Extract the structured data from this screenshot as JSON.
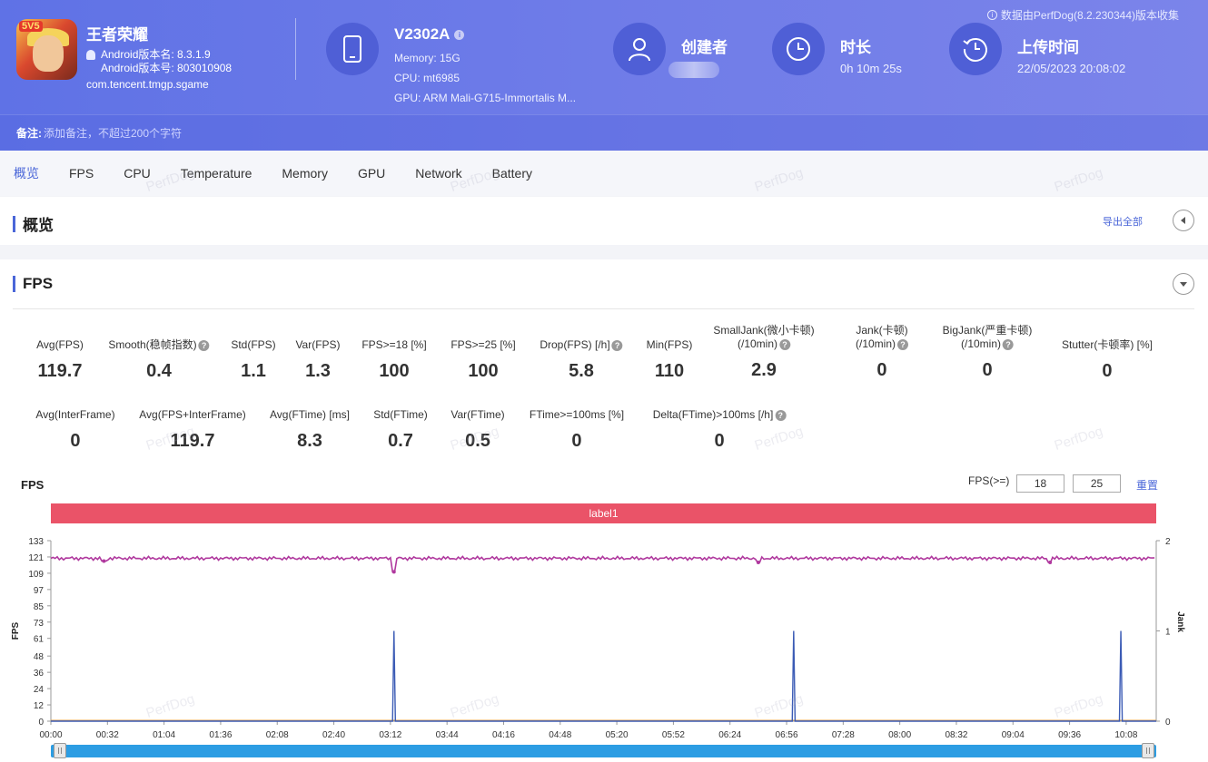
{
  "header": {
    "top_note": "数据由PerfDog(8.2.230344)版本收集",
    "app_badge": "5V5",
    "app_name": "王者荣耀",
    "android_version_name": "Android版本名: 8.3.1.9",
    "android_version_code": "Android版本号: 803010908",
    "package": "com.tencent.tmgp.sgame",
    "device": {
      "model": "V2302A",
      "memory": "Memory: 15G",
      "cpu": "CPU: mt6985",
      "gpu": "GPU: ARM Mali-G715-Immortalis M..."
    },
    "creator_title": "创建者",
    "duration_title": "时长",
    "duration_value": "0h 10m 25s",
    "upload_title": "上传时间",
    "upload_value": "22/05/2023 20:08:02",
    "note_label": "备注:",
    "note_placeholder": "添加备注，不超过200个字符"
  },
  "tabs": [
    "概览",
    "FPS",
    "CPU",
    "Temperature",
    "Memory",
    "GPU",
    "Network",
    "Battery"
  ],
  "overview": {
    "title": "概览",
    "export": "导出全部"
  },
  "fps_section": {
    "title": "FPS",
    "stats_row1": [
      {
        "name": "Avg(FPS)",
        "value": "119.7",
        "help": false
      },
      {
        "name": "Smooth(稳帧指数)",
        "value": "0.4",
        "help": true
      },
      {
        "name": "Std(FPS)",
        "value": "1.1",
        "help": false
      },
      {
        "name": "Var(FPS)",
        "value": "1.3",
        "help": false
      },
      {
        "name": "FPS>=18 [%]",
        "value": "100",
        "help": false
      },
      {
        "name": "FPS>=25 [%]",
        "value": "100",
        "help": false
      },
      {
        "name": "Drop(FPS) [/h]",
        "value": "5.8",
        "help": true
      },
      {
        "name": "Min(FPS)",
        "value": "110",
        "help": false
      },
      {
        "name": "SmallJank(微小卡顿)",
        "name2": "(/10min)",
        "value": "2.9",
        "help": true
      },
      {
        "name": "Jank(卡顿)",
        "name2": "(/10min)",
        "value": "0",
        "help": true
      },
      {
        "name": "BigJank(严重卡顿)",
        "name2": "(/10min)",
        "value": "0",
        "help": true
      },
      {
        "name": "Stutter(卡顿率) [%]",
        "value": "0",
        "help": false
      }
    ],
    "stats_row2": [
      {
        "name": "Avg(InterFrame)",
        "value": "0",
        "help": false
      },
      {
        "name": "Avg(FPS+InterFrame)",
        "value": "119.7",
        "help": false
      },
      {
        "name": "Avg(FTime) [ms]",
        "value": "8.3",
        "help": false
      },
      {
        "name": "Std(FTime)",
        "value": "0.7",
        "help": false
      },
      {
        "name": "Var(FTime)",
        "value": "0.5",
        "help": false
      },
      {
        "name": "FTime>=100ms [%]",
        "value": "0",
        "help": false
      },
      {
        "name": "Delta(FTime)>100ms [/h]",
        "value": "0",
        "help": true
      }
    ],
    "chart_label": "FPS",
    "threshold_label": "FPS(>=)",
    "threshold_1": "18",
    "threshold_2": "25",
    "reset": "重置",
    "band_label": "label1"
  },
  "watermark_text": "PerfDog",
  "colors": {
    "accent": "#4a66d8",
    "fps_line": "#b0399e",
    "jank_line": "#3b5bb5",
    "band": "#ea5368",
    "slider": "#2c9de3"
  },
  "chart_data": {
    "type": "line",
    "title": "",
    "xlabel": "",
    "ylabel": "FPS",
    "y2label": "Jank",
    "yticks": [
      0,
      12,
      24,
      36,
      48,
      61,
      73,
      85,
      97,
      109,
      121,
      133
    ],
    "ylim": [
      0,
      133
    ],
    "y2ticks": [
      0,
      1,
      2
    ],
    "y2lim": [
      0,
      2
    ],
    "xticks": [
      "00:00",
      "00:32",
      "01:04",
      "01:36",
      "02:08",
      "02:40",
      "03:12",
      "03:44",
      "04:16",
      "04:48",
      "05:20",
      "05:52",
      "06:24",
      "06:56",
      "07:28",
      "08:00",
      "08:32",
      "09:04",
      "09:36",
      "10:08"
    ],
    "x_end_seconds": 625,
    "series": [
      {
        "name": "FPS",
        "axis": "left",
        "baseline": 120,
        "dips": [
          {
            "t": 194,
            "v": 110
          },
          {
            "t": 400,
            "v": 117
          },
          {
            "t": 565,
            "v": 117
          },
          {
            "t": 30,
            "v": 118
          }
        ]
      },
      {
        "name": "Jank",
        "axis": "right",
        "values": [
          {
            "t": 194,
            "v": 1
          },
          {
            "t": 420,
            "v": 1
          },
          {
            "t": 605,
            "v": 1
          }
        ]
      }
    ],
    "grid": false,
    "legend": "none"
  }
}
